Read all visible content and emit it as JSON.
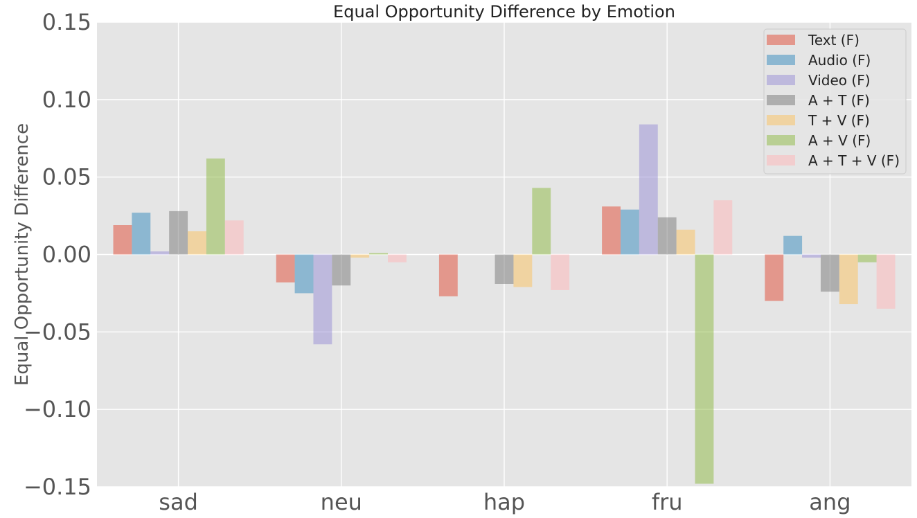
{
  "chart_data": {
    "type": "bar",
    "title": "Equal Opportunity Difference by Emotion",
    "xlabel": "",
    "ylabel": "Equal Opportunity Difference",
    "ylim": [
      -0.15,
      0.15
    ],
    "yticks": [
      0.15,
      0.1,
      0.05,
      0.0,
      -0.05,
      -0.1,
      -0.15
    ],
    "ytick_labels": [
      "0.15",
      "0.10",
      "0.05",
      "0.00",
      "−0.05",
      "−0.10",
      "−0.15"
    ],
    "grid": true,
    "legend_position": "top-right",
    "categories": [
      "sad",
      "neu",
      "hap",
      "fru",
      "ang"
    ],
    "series": [
      {
        "name": "Text (F)",
        "color": "#E24A33",
        "values": [
          0.019,
          -0.018,
          -0.027,
          0.031,
          -0.03
        ]
      },
      {
        "name": "Audio (F)",
        "color": "#348ABD",
        "values": [
          0.027,
          -0.025,
          0.0,
          0.029,
          0.012
        ]
      },
      {
        "name": "Video (F)",
        "color": "#988ED5",
        "values": [
          0.002,
          -0.058,
          0.0,
          0.084,
          -0.002
        ]
      },
      {
        "name": "A + T (F)",
        "color": "#777777",
        "values": [
          0.028,
          -0.02,
          -0.019,
          0.024,
          -0.024
        ]
      },
      {
        "name": "T + V (F)",
        "color": "#FBC15E",
        "values": [
          0.015,
          -0.002,
          -0.021,
          0.016,
          -0.032
        ]
      },
      {
        "name": "A + V (F)",
        "color": "#8EBA42",
        "values": [
          0.062,
          0.001,
          0.043,
          -0.148,
          -0.005
        ]
      },
      {
        "name": "A + T + V (F)",
        "color": "#FFB5B8",
        "values": [
          0.022,
          -0.005,
          -0.023,
          0.035,
          -0.035
        ]
      }
    ]
  }
}
